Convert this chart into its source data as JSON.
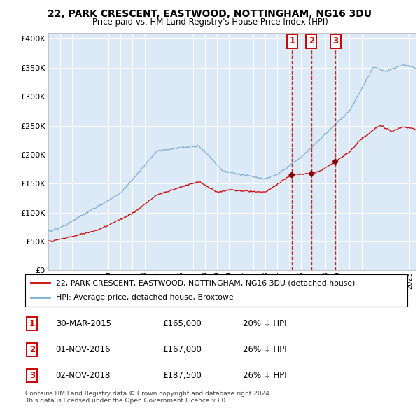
{
  "title1": "22, PARK CRESCENT, EASTWOOD, NOTTINGHAM, NG16 3DU",
  "title2": "Price paid vs. HM Land Registry's House Price Index (HPI)",
  "plot_bg_color": "#dce9f7",
  "hpi_color": "#7bafd4",
  "price_color": "#cc0000",
  "sale_marker_color": "#880000",
  "dashed_line_color": "#cc0000",
  "ylim": [
    0,
    410000
  ],
  "yticks": [
    0,
    50000,
    100000,
    150000,
    200000,
    250000,
    300000,
    350000,
    400000
  ],
  "sales": [
    {
      "num": 1,
      "date": "30-MAR-2015",
      "price": 165000,
      "pct": "20%",
      "x_year": 2015.24
    },
    {
      "num": 2,
      "date": "01-NOV-2016",
      "price": 167000,
      "pct": "26%",
      "x_year": 2016.83
    },
    {
      "num": 3,
      "date": "02-NOV-2018",
      "price": 187500,
      "pct": "26%",
      "x_year": 2018.83
    }
  ],
  "legend_entries": [
    {
      "label": "22, PARK CRESCENT, EASTWOOD, NOTTINGHAM, NG16 3DU (detached house)",
      "color": "#cc0000"
    },
    {
      "label": "HPI: Average price, detached house, Broxtowe",
      "color": "#7bafd4"
    }
  ],
  "footnote": "Contains HM Land Registry data © Crown copyright and database right 2024.\nThis data is licensed under the Open Government Licence v3.0.",
  "xlim_start": 1995.0,
  "xlim_end": 2025.5,
  "xtick_start": 1995,
  "xtick_end": 2026
}
